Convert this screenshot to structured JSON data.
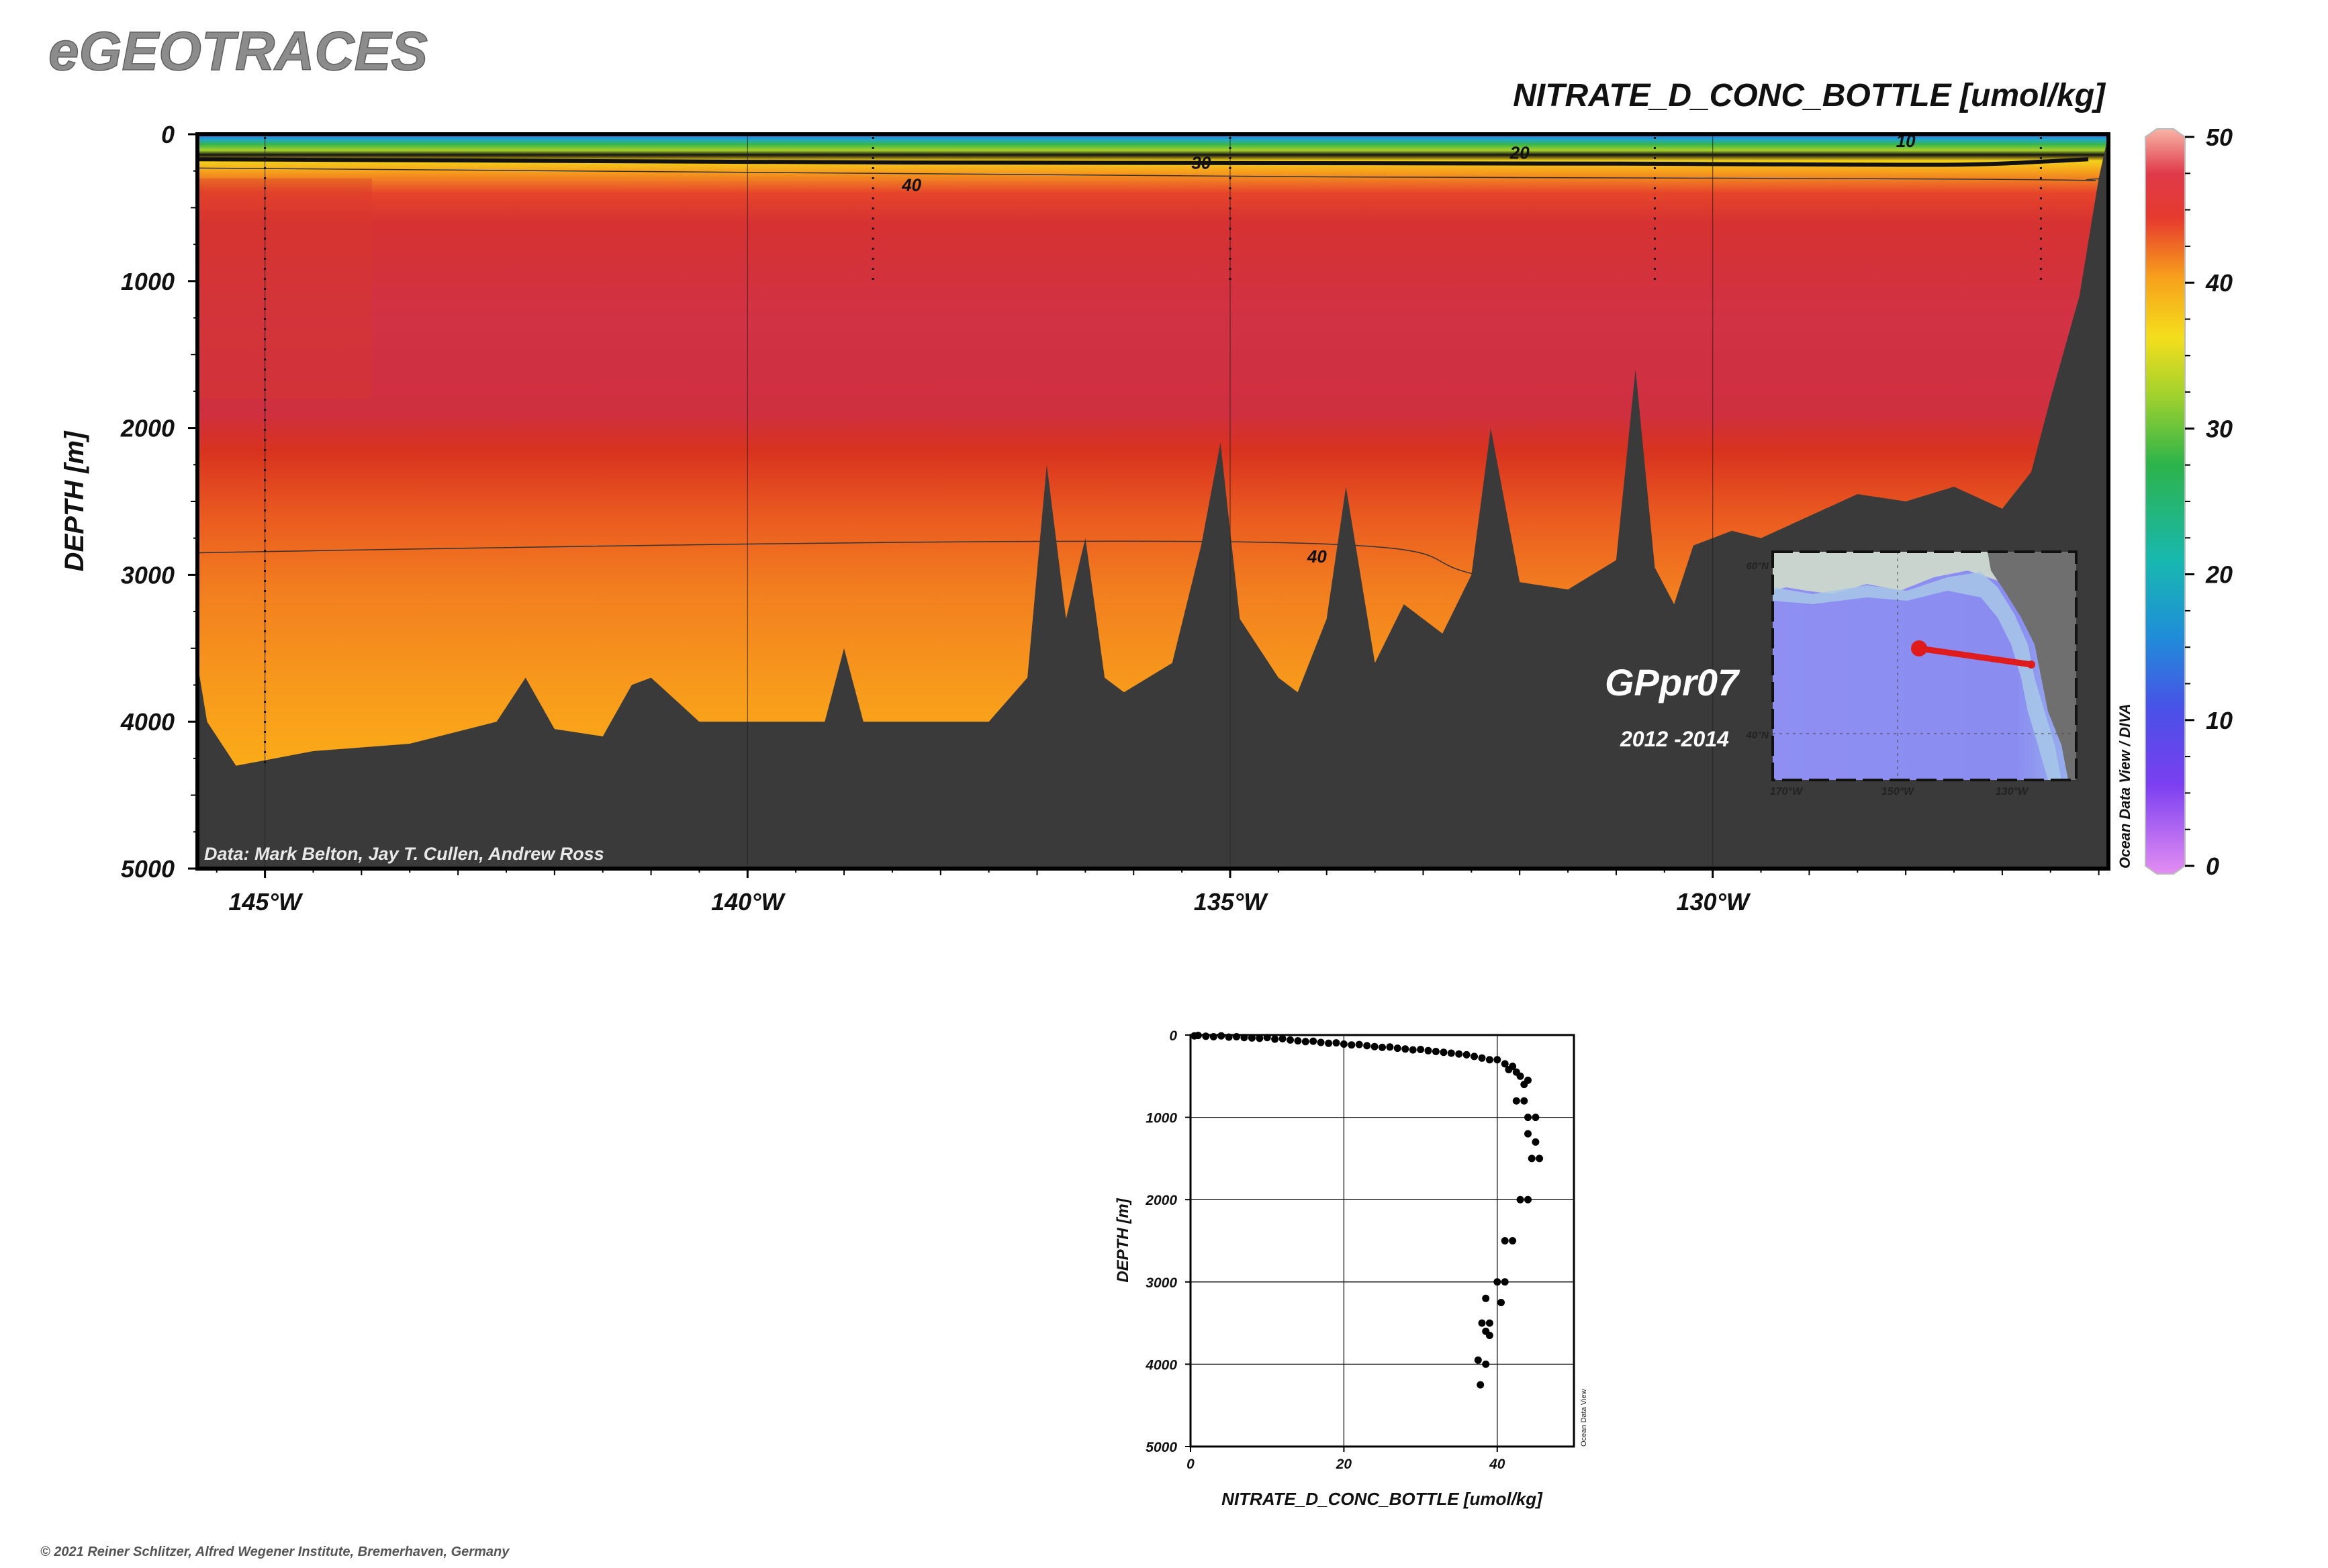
{
  "brand": {
    "name": "eGEOTRACES"
  },
  "copyright": "© 2021 Reiner Schlitzer, Alfred Wegener Institute, Bremerhaven, Germany",
  "section": {
    "title": "NITRATE_D_CONC_BOTTLE [umol/kg]",
    "data_credit": "Data: Mark Belton, Jay T. Cullen, Andrew Ross",
    "cruise": "GPpr07",
    "years": "2012 -2014",
    "side_credit": "Ocean Data View / DIVA",
    "inset_credit": "Ocean Data View"
  },
  "colors": {
    "land": "#3a3a3a",
    "frame": "#000000",
    "track": "#e01b1b",
    "ocean_inset": "#8c8cf0"
  },
  "chart_data": [
    {
      "type": "heatmap",
      "title": "NITRATE_D_CONC_BOTTLE [umol/kg]",
      "ylabel": "DEPTH [m]",
      "xlabel": "",
      "xlim": [
        -145.7,
        -125.9
      ],
      "ylim": [
        5000,
        0
      ],
      "x_ticks": [
        -145,
        -140,
        -135,
        -130
      ],
      "x_tick_labels": [
        "145°W",
        "140°W",
        "135°W",
        "130°W"
      ],
      "y_ticks": [
        0,
        1000,
        2000,
        3000,
        4000,
        5000
      ],
      "y_tick_labels": [
        "0",
        "1000",
        "2000",
        "3000",
        "4000",
        "5000"
      ],
      "colorbar": {
        "min": 0,
        "max": 50,
        "ticks": [
          0,
          10,
          20,
          30,
          40,
          50
        ],
        "tick_labels": [
          "0",
          "10",
          "20",
          "30",
          "40",
          "50"
        ]
      },
      "contour_labels": [
        {
          "text": "10",
          "x": -128.0,
          "y": 40
        },
        {
          "text": "20",
          "x": -132.0,
          "y": 120
        },
        {
          "text": "30",
          "x": -135.3,
          "y": 190
        },
        {
          "text": "40",
          "x": -138.3,
          "y": 340
        },
        {
          "text": "40",
          "x": -134.1,
          "y": 2870
        }
      ],
      "stations_lon": [
        -145.0,
        -138.7,
        -135.0,
        -130.6,
        -126.6
      ],
      "bottom_profile": [
        [
          -145.7,
          3600
        ],
        [
          -145.6,
          4000
        ],
        [
          -145.3,
          4300
        ],
        [
          -144.5,
          4200
        ],
        [
          -143.5,
          4150
        ],
        [
          -142.6,
          4000
        ],
        [
          -142.3,
          3700
        ],
        [
          -142.0,
          4050
        ],
        [
          -141.5,
          4100
        ],
        [
          -141.2,
          3750
        ],
        [
          -141.0,
          3700
        ],
        [
          -140.5,
          4000
        ],
        [
          -139.2,
          4000
        ],
        [
          -139.0,
          3500
        ],
        [
          -138.8,
          4000
        ],
        [
          -137.5,
          4000
        ],
        [
          -137.1,
          3700
        ],
        [
          -136.9,
          2250
        ],
        [
          -136.7,
          3300
        ],
        [
          -136.5,
          2750
        ],
        [
          -136.3,
          3700
        ],
        [
          -136.1,
          3800
        ],
        [
          -135.6,
          3600
        ],
        [
          -135.3,
          2800
        ],
        [
          -135.1,
          2100
        ],
        [
          -134.9,
          3300
        ],
        [
          -134.5,
          3700
        ],
        [
          -134.3,
          3800
        ],
        [
          -134.0,
          3300
        ],
        [
          -133.8,
          2400
        ],
        [
          -133.5,
          3600
        ],
        [
          -133.2,
          3200
        ],
        [
          -132.8,
          3400
        ],
        [
          -132.5,
          3000
        ],
        [
          -132.3,
          2000
        ],
        [
          -132.0,
          3050
        ],
        [
          -131.5,
          3100
        ],
        [
          -131.0,
          2900
        ],
        [
          -130.8,
          1600
        ],
        [
          -130.6,
          2950
        ],
        [
          -130.4,
          3200
        ],
        [
          -130.2,
          2800
        ],
        [
          -129.8,
          2700
        ],
        [
          -129.5,
          2750
        ],
        [
          -129.0,
          2600
        ],
        [
          -128.5,
          2450
        ],
        [
          -128.0,
          2500
        ],
        [
          -127.5,
          2400
        ],
        [
          -127.0,
          2550
        ],
        [
          -126.7,
          2300
        ],
        [
          -126.5,
          1800
        ],
        [
          -126.2,
          1100
        ],
        [
          -126.0,
          300
        ],
        [
          -125.9,
          0
        ]
      ]
    },
    {
      "type": "scatter",
      "xlabel": "NITRATE_D_CONC_BOTTLE [umol/kg]",
      "ylabel": "DEPTH [m]",
      "xlim": [
        0,
        50
      ],
      "ylim": [
        5000,
        0
      ],
      "x_ticks": [
        0,
        20,
        40
      ],
      "y_ticks": [
        0,
        1000,
        2000,
        3000,
        4000,
        5000
      ],
      "points": [
        [
          0.5,
          10
        ],
        [
          1,
          5
        ],
        [
          2,
          15
        ],
        [
          3,
          20
        ],
        [
          4,
          10
        ],
        [
          5,
          25
        ],
        [
          6,
          20
        ],
        [
          7,
          30
        ],
        [
          8,
          35
        ],
        [
          9,
          40
        ],
        [
          10,
          30
        ],
        [
          11,
          50
        ],
        [
          12,
          45
        ],
        [
          13,
          60
        ],
        [
          14,
          70
        ],
        [
          15,
          80
        ],
        [
          16,
          75
        ],
        [
          17,
          90
        ],
        [
          18,
          100
        ],
        [
          19,
          95
        ],
        [
          20,
          110
        ],
        [
          21,
          120
        ],
        [
          22,
          115
        ],
        [
          23,
          130
        ],
        [
          24,
          140
        ],
        [
          25,
          150
        ],
        [
          26,
          145
        ],
        [
          27,
          160
        ],
        [
          28,
          170
        ],
        [
          29,
          180
        ],
        [
          30,
          175
        ],
        [
          31,
          190
        ],
        [
          32,
          200
        ],
        [
          33,
          210
        ],
        [
          34,
          220
        ],
        [
          35,
          230
        ],
        [
          36,
          240
        ],
        [
          37,
          260
        ],
        [
          38,
          280
        ],
        [
          39,
          300
        ],
        [
          40,
          300
        ],
        [
          41,
          350
        ],
        [
          42,
          380
        ],
        [
          41.5,
          420
        ],
        [
          42.5,
          450
        ],
        [
          43,
          500
        ],
        [
          44,
          550
        ],
        [
          43.5,
          600
        ],
        [
          42.5,
          800
        ],
        [
          43.5,
          800
        ],
        [
          44,
          1000
        ],
        [
          45,
          1000
        ],
        [
          44,
          1200
        ],
        [
          45,
          1300
        ],
        [
          44.5,
          1500
        ],
        [
          45.5,
          1500
        ],
        [
          43,
          2000
        ],
        [
          44,
          2000
        ],
        [
          41,
          2500
        ],
        [
          42,
          2500
        ],
        [
          40,
          3000
        ],
        [
          41,
          3000
        ],
        [
          38.5,
          3200
        ],
        [
          40.5,
          3250
        ],
        [
          38,
          3500
        ],
        [
          39,
          3500
        ],
        [
          38.5,
          3600
        ],
        [
          39,
          3650
        ],
        [
          37.5,
          3950
        ],
        [
          38.5,
          4000
        ],
        [
          37.8,
          4250
        ]
      ]
    }
  ]
}
